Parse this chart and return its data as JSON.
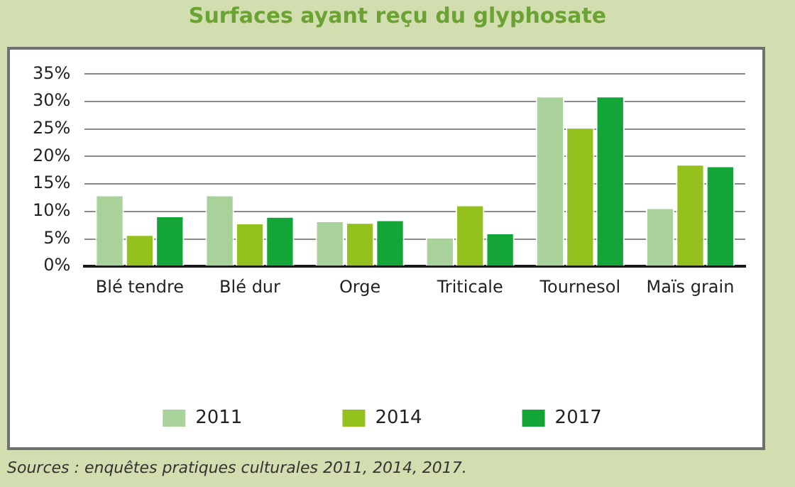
{
  "chart_data": {
    "type": "bar",
    "title": "Surfaces ayant reçu du glyphosate",
    "categories": [
      "Blé tendre",
      "Blé dur",
      "Orge",
      "Triticale",
      "Tournesol",
      "Maïs grain"
    ],
    "series": [
      {
        "name": "2011",
        "color": "#a8d29a",
        "values": [
          13.0,
          13.0,
          8.3,
          5.3,
          31.0,
          10.7
        ]
      },
      {
        "name": "2014",
        "color": "#95c11f",
        "values": [
          5.8,
          7.9,
          8.0,
          11.2,
          25.3,
          18.6
        ]
      },
      {
        "name": "2017",
        "color": "#13a538",
        "values": [
          9.2,
          9.1,
          8.5,
          6.1,
          31.0,
          18.3
        ]
      }
    ],
    "ylim": [
      0,
      35
    ],
    "yticks": [
      {
        "value": 0,
        "label": "0%"
      },
      {
        "value": 5,
        "label": "5%"
      },
      {
        "value": 10,
        "label": "10%"
      },
      {
        "value": 15,
        "label": "15%"
      },
      {
        "value": 20,
        "label": "20%"
      },
      {
        "value": 25,
        "label": "25%"
      },
      {
        "value": 30,
        "label": "30%"
      },
      {
        "value": 35,
        "label": "35%"
      }
    ],
    "grid": "y",
    "legend": "bottom",
    "annotations": [
      "Sources : enquêtes pratiques culturales 2011, 2014, 2017."
    ]
  }
}
